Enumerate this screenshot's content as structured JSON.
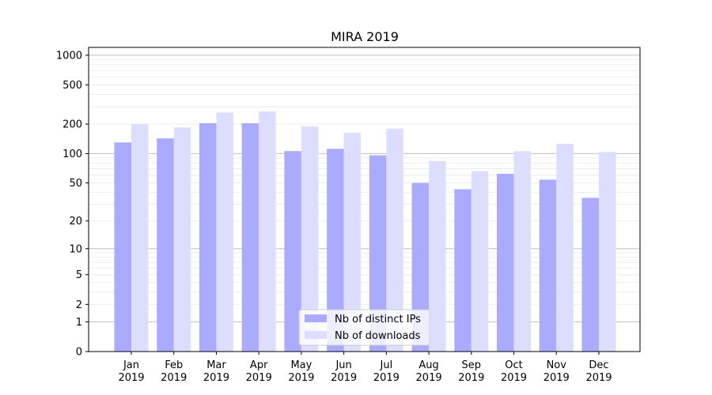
{
  "chart_data": {
    "type": "bar",
    "title": "MIRA 2019",
    "xlabel": "",
    "ylabel": "",
    "yscale": "log(1+y)",
    "ylim": [
      0,
      1200
    ],
    "yticks": [
      0,
      1,
      2,
      5,
      10,
      20,
      50,
      100,
      200,
      500,
      1000
    ],
    "ytick_labels": [
      "0",
      "1",
      "2",
      "5",
      "10",
      "20",
      "50",
      "100",
      "200",
      "500",
      "1000"
    ],
    "grid": "horizontal",
    "legend_position": "bottom-center",
    "categories": [
      "Jan\n2019",
      "Feb\n2019",
      "Mar\n2019",
      "Apr\n2019",
      "May\n2019",
      "Jun\n2019",
      "Jul\n2019",
      "Aug\n2019",
      "Sep\n2019",
      "Oct\n2019",
      "Nov\n2019",
      "Dec\n2019"
    ],
    "series": [
      {
        "name": "Nb of distinct IPs",
        "color": "#aaaaff",
        "values": [
          130,
          143,
          204,
          204,
          106,
          112,
          96,
          50,
          43,
          62,
          54,
          35
        ]
      },
      {
        "name": "Nb of downloads",
        "color": "#ddddff",
        "values": [
          200,
          185,
          262,
          270,
          190,
          163,
          180,
          84,
          66,
          106,
          126,
          104
        ]
      }
    ]
  }
}
